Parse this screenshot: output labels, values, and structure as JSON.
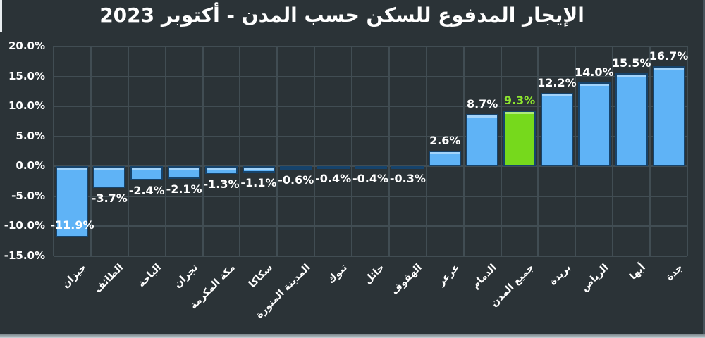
{
  "chart_data": {
    "type": "bar",
    "title": "الإيجار المدفوع للسكن حسب المدن - أكتوبر 2023",
    "xlabel": "",
    "ylabel": "",
    "categories": [
      "جيزان",
      "الطائف",
      "الباحة",
      "نجران",
      "مكة المكرمة",
      "سكاكا",
      "المدينة المنورة",
      "تبوك",
      "حائل",
      "الهفوف",
      "عرعر",
      "الدمام",
      "جميع المدن",
      "بريدة",
      "الرياض",
      "أبها",
      "جدة"
    ],
    "values": [
      -11.9,
      -3.7,
      -2.4,
      -2.1,
      -1.3,
      -1.1,
      -0.6,
      -0.4,
      -0.4,
      -0.3,
      2.6,
      8.7,
      9.3,
      12.2,
      14.0,
      15.5,
      16.7
    ],
    "value_labels": [
      "-11.9%",
      "-3.7%",
      "-2.4%",
      "-2.1%",
      "-1.3%",
      "-1.1%",
      "-0.6%",
      "-0.4%",
      "-0.4%",
      "-0.3%",
      "2.6%",
      "8.7%",
      "9.3%",
      "12.2%",
      "14.0%",
      "15.5%",
      "16.7%"
    ],
    "highlight_index": 12,
    "highlight_category": "جميع المدن",
    "y_ticks": [
      {
        "label": "20.0%",
        "value": 20
      },
      {
        "label": "15.0%",
        "value": 15
      },
      {
        "label": "10.0%",
        "value": 10
      },
      {
        "label": "5.0%",
        "value": 5
      },
      {
        "label": "0.0%",
        "value": 0
      },
      {
        "label": "-5.0%",
        "value": -5
      },
      {
        "label": "-10.0%",
        "value": -10
      },
      {
        "label": "-15.0%",
        "value": -15
      }
    ],
    "ylim": [
      -15,
      20
    ],
    "grid": "both",
    "legend": "none",
    "colors": {
      "background": "#2b3337",
      "bar": "#5fb3f6",
      "bar_border": "#16436b",
      "highlight_bar": "#76d91c",
      "highlight_label": "#8ce42f",
      "grid": "#414d53",
      "text": "#ffffff"
    }
  }
}
